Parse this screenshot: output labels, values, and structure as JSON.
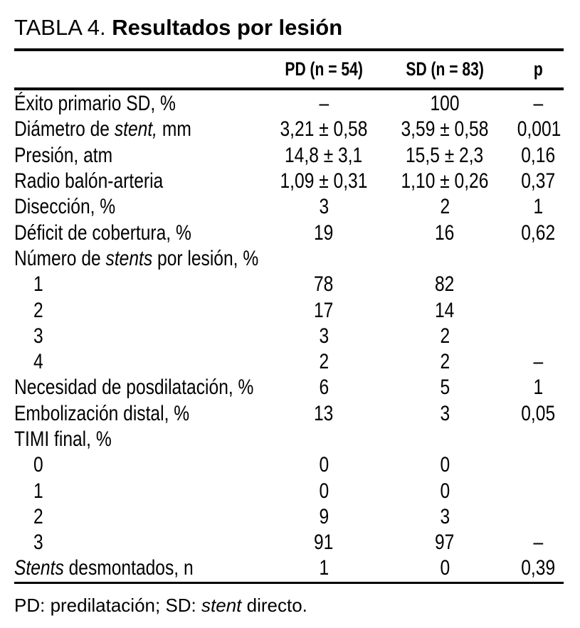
{
  "page": {
    "background_color": "#ffffff",
    "text_color": "#000000",
    "rule_color": "#000000"
  },
  "title": {
    "prefix": "TABLA 4.",
    "bold": "Resultados por lesión"
  },
  "table": {
    "columns": [
      {
        "key": "pd",
        "label": "PD (n = 54)"
      },
      {
        "key": "sd",
        "label": "SD (n = 83)"
      },
      {
        "key": "p",
        "label": "p"
      }
    ],
    "rows": [
      {
        "indent": false,
        "label": [
          {
            "t": "Éxito primario SD, %",
            "i": false
          }
        ],
        "pd": "–",
        "sd": "100",
        "p": "–"
      },
      {
        "indent": false,
        "label": [
          {
            "t": "Diámetro de ",
            "i": false
          },
          {
            "t": "stent,",
            "i": true
          },
          {
            "t": " mm",
            "i": false
          }
        ],
        "pd": "3,21 ± 0,58",
        "sd": "3,59 ± 0,58",
        "p": "0,001"
      },
      {
        "indent": false,
        "label": [
          {
            "t": "Presión, atm",
            "i": false
          }
        ],
        "pd": "14,8 ± 3,1",
        "sd": "15,5 ± 2,3",
        "p": "0,16"
      },
      {
        "indent": false,
        "label": [
          {
            "t": "Radio balón-arteria",
            "i": false
          }
        ],
        "pd": "1,09 ± 0,31",
        "sd": "1,10 ± 0,26",
        "p": "0,37"
      },
      {
        "indent": false,
        "label": [
          {
            "t": "Disección, %",
            "i": false
          }
        ],
        "pd": "3",
        "sd": "2",
        "p": "1"
      },
      {
        "indent": false,
        "label": [
          {
            "t": "Déficit de cobertura, %",
            "i": false
          }
        ],
        "pd": "19",
        "sd": "16",
        "p": "0,62"
      },
      {
        "indent": false,
        "label": [
          {
            "t": "Número de ",
            "i": false
          },
          {
            "t": "stents",
            "i": true
          },
          {
            "t": " por lesión, %",
            "i": false
          }
        ],
        "pd": "",
        "sd": "",
        "p": ""
      },
      {
        "indent": true,
        "label": [
          {
            "t": "1",
            "i": false
          }
        ],
        "pd": "78",
        "sd": "82",
        "p": ""
      },
      {
        "indent": true,
        "label": [
          {
            "t": "2",
            "i": false
          }
        ],
        "pd": "17",
        "sd": "14",
        "p": ""
      },
      {
        "indent": true,
        "label": [
          {
            "t": "3",
            "i": false
          }
        ],
        "pd": "3",
        "sd": "2",
        "p": ""
      },
      {
        "indent": true,
        "label": [
          {
            "t": "4",
            "i": false
          }
        ],
        "pd": "2",
        "sd": "2",
        "p": "–"
      },
      {
        "indent": false,
        "label": [
          {
            "t": "Necesidad de posdilatación, %",
            "i": false
          }
        ],
        "pd": "6",
        "sd": "5",
        "p": "1"
      },
      {
        "indent": false,
        "label": [
          {
            "t": "Embolización distal, %",
            "i": false
          }
        ],
        "pd": "13",
        "sd": "3",
        "p": "0,05"
      },
      {
        "indent": false,
        "label": [
          {
            "t": "TIMI final, %",
            "i": false
          }
        ],
        "pd": "",
        "sd": "",
        "p": ""
      },
      {
        "indent": true,
        "label": [
          {
            "t": "0",
            "i": false
          }
        ],
        "pd": "0",
        "sd": "0",
        "p": ""
      },
      {
        "indent": true,
        "label": [
          {
            "t": "1",
            "i": false
          }
        ],
        "pd": "0",
        "sd": "0",
        "p": ""
      },
      {
        "indent": true,
        "label": [
          {
            "t": "2",
            "i": false
          }
        ],
        "pd": "9",
        "sd": "3",
        "p": ""
      },
      {
        "indent": true,
        "label": [
          {
            "t": "3",
            "i": false
          }
        ],
        "pd": "91",
        "sd": "97",
        "p": "–"
      },
      {
        "indent": false,
        "label": [
          {
            "t": "Stents",
            "i": true
          },
          {
            "t": " desmontados, n",
            "i": false
          }
        ],
        "pd": "1",
        "sd": "0",
        "p": "0,39"
      }
    ]
  },
  "footnote": [
    {
      "t": "PD: predilatación; SD: ",
      "i": false
    },
    {
      "t": "stent",
      "i": true
    },
    {
      "t": " directo.",
      "i": false
    }
  ]
}
